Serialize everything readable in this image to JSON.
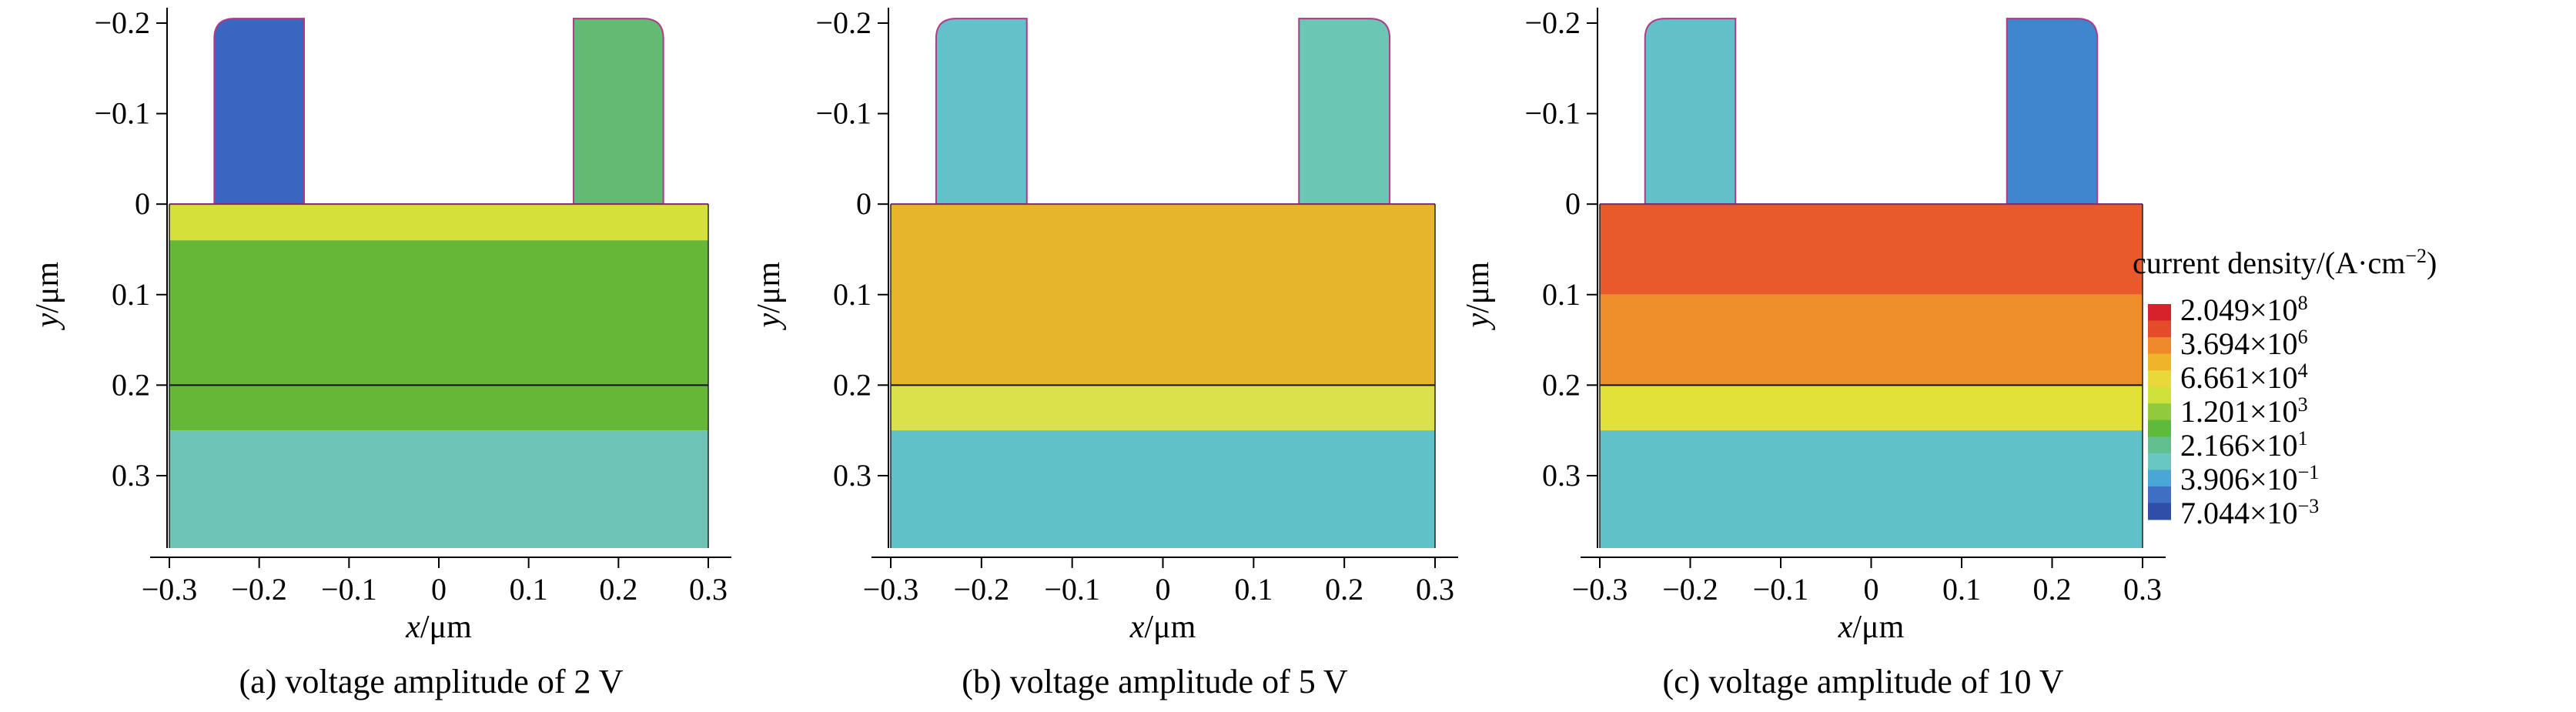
{
  "chart_data": {
    "type": "heatmap",
    "panels": [
      {
        "id": "a",
        "caption": "(a) voltage amplitude of 2 V",
        "xlabel_var": "x",
        "xlabel_unit": "/μm",
        "ylabel_var": "y",
        "ylabel_unit": "/μm",
        "xlim": [
          -0.3,
          0.3
        ],
        "ylim": [
          -0.2,
          0.38
        ],
        "xticks": [
          -0.3,
          -0.2,
          -0.1,
          0,
          0.1,
          0.2,
          0.3
        ],
        "xtick_labels": [
          "−0.3",
          "−0.2",
          "−0.1",
          "0",
          "0.1",
          "0.2",
          "0.3"
        ],
        "yticks": [
          -0.2,
          -0.1,
          0,
          0.1,
          0.2,
          0.3
        ],
        "ytick_labels": [
          "−0.2",
          "−0.1",
          "0",
          "0.1",
          "0.2",
          "0.3"
        ],
        "level_interface_y": 0.2,
        "layers": [
          {
            "region": "left-electrode",
            "x": [
              -0.25,
              -0.15
            ],
            "y": [
              -0.205,
              0
            ],
            "color": "#3a66bf"
          },
          {
            "region": "right-electrode",
            "x": [
              0.15,
              0.25
            ],
            "y": [
              -0.205,
              0
            ],
            "color": "#63bb73"
          },
          {
            "region": "film-top",
            "x": [
              -0.3,
              0.3
            ],
            "y": [
              0,
              0.04
            ],
            "color": "#d6e03a"
          },
          {
            "region": "film-middle",
            "x": [
              -0.3,
              0.3
            ],
            "y": [
              0.04,
              0.25
            ],
            "color": "#66b737"
          },
          {
            "region": "substrate",
            "x": [
              -0.3,
              0.3
            ],
            "y": [
              0.25,
              0.38
            ],
            "color": "#6cc5b4"
          }
        ]
      },
      {
        "id": "b",
        "caption": "(b) voltage amplitude of 5 V",
        "xlabel_var": "x",
        "xlabel_unit": "/μm",
        "ylabel_var": "y",
        "ylabel_unit": "/μm",
        "xlim": [
          -0.3,
          0.3
        ],
        "ylim": [
          -0.2,
          0.38
        ],
        "xticks": [
          -0.3,
          -0.2,
          -0.1,
          0,
          0.1,
          0.2,
          0.3
        ],
        "xtick_labels": [
          "−0.3",
          "−0.2",
          "−0.1",
          "0",
          "0.1",
          "0.2",
          "0.3"
        ],
        "yticks": [
          -0.2,
          -0.1,
          0,
          0.1,
          0.2,
          0.3
        ],
        "ytick_labels": [
          "−0.2",
          "−0.1",
          "0",
          "0.1",
          "0.2",
          "0.3"
        ],
        "level_interface_y": 0.2,
        "layers": [
          {
            "region": "left-electrode",
            "x": [
              -0.25,
              -0.15
            ],
            "y": [
              -0.205,
              0
            ],
            "color": "#64c0c9"
          },
          {
            "region": "right-electrode",
            "x": [
              0.15,
              0.25
            ],
            "y": [
              -0.205,
              0
            ],
            "color": "#6bc6b4"
          },
          {
            "region": "film-top",
            "x": [
              -0.3,
              0.3
            ],
            "y": [
              0,
              0.2
            ],
            "color": "#e6b52c"
          },
          {
            "region": "film-bottom",
            "x": [
              -0.3,
              0.3
            ],
            "y": [
              0.2,
              0.25
            ],
            "color": "#dbe14a"
          },
          {
            "region": "substrate",
            "x": [
              -0.3,
              0.3
            ],
            "y": [
              0.25,
              0.38
            ],
            "color": "#61c1c8"
          }
        ]
      },
      {
        "id": "c",
        "caption": "(c) voltage amplitude of 10 V",
        "xlabel_var": "x",
        "xlabel_unit": "/μm",
        "ylabel_var": "y",
        "ylabel_unit": "/μm",
        "xlim": [
          -0.3,
          0.3
        ],
        "ylim": [
          -0.2,
          0.38
        ],
        "xticks": [
          -0.3,
          -0.2,
          -0.1,
          0,
          0.1,
          0.2,
          0.3
        ],
        "xtick_labels": [
          "−0.3",
          "−0.2",
          "−0.1",
          "0",
          "0.1",
          "0.2",
          "0.3"
        ],
        "yticks": [
          -0.2,
          -0.1,
          0,
          0.1,
          0.2,
          0.3
        ],
        "ytick_labels": [
          "−0.2",
          "−0.1",
          "0",
          "0.1",
          "0.2",
          "0.3"
        ],
        "level_interface_y": 0.2,
        "layers": [
          {
            "region": "left-electrode",
            "x": [
              -0.25,
              -0.15
            ],
            "y": [
              -0.205,
              0
            ],
            "color": "#62c0c8"
          },
          {
            "region": "right-electrode",
            "x": [
              0.15,
              0.25
            ],
            "y": [
              -0.205,
              0
            ],
            "color": "#3f86cc"
          },
          {
            "region": "film-top",
            "x": [
              -0.3,
              0.3
            ],
            "y": [
              0,
              0.1
            ],
            "color": "#e85a2b"
          },
          {
            "region": "film-middle",
            "x": [
              -0.3,
              0.3
            ],
            "y": [
              0.1,
              0.2
            ],
            "color": "#ee8e2a"
          },
          {
            "region": "film-bottom",
            "x": [
              -0.3,
              0.3
            ],
            "y": [
              0.2,
              0.25
            ],
            "color": "#e2e13a"
          },
          {
            "region": "substrate",
            "x": [
              -0.3,
              0.3
            ],
            "y": [
              0.25,
              0.38
            ],
            "color": "#61c1c8"
          }
        ]
      }
    ],
    "colorbar": {
      "title": "current density/(A·cm",
      "title_exp": "−2",
      "title_close": ")",
      "labels": [
        {
          "mantissa": "2.049×10",
          "exp": "8"
        },
        {
          "mantissa": "3.694×10",
          "exp": "6"
        },
        {
          "mantissa": "6.661×10",
          "exp": "4"
        },
        {
          "mantissa": "1.201×10",
          "exp": "3"
        },
        {
          "mantissa": "2.166×10",
          "exp": "1"
        },
        {
          "mantissa": "3.906×10",
          "exp": "−1"
        },
        {
          "mantissa": "7.044×10",
          "exp": "−3"
        }
      ],
      "colors": [
        "#d8222b",
        "#e44b2a",
        "#ee8a2c",
        "#f0b42b",
        "#e9d83a",
        "#cfe13a",
        "#8fcb3d",
        "#5dba3a",
        "#62c08e",
        "#68c7c2",
        "#4aa6d4",
        "#3f6fc2",
        "#2e4ea8"
      ]
    }
  }
}
